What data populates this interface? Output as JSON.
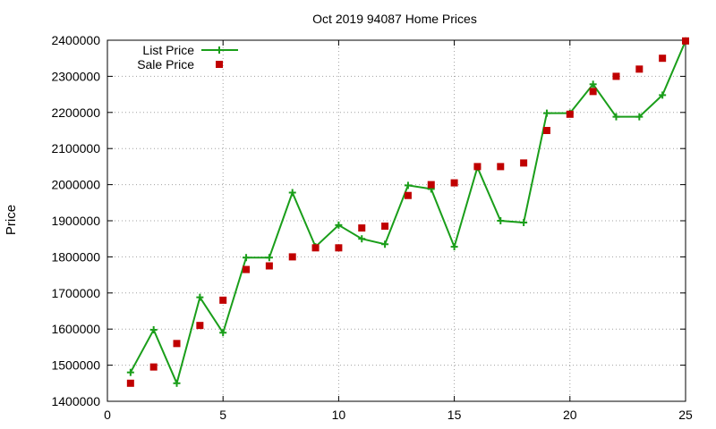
{
  "chart_data": {
    "type": "line",
    "title": "Oct 2019 94087 Home Prices",
    "xlabel": "",
    "ylabel": "Price",
    "xlim": [
      0,
      25
    ],
    "ylim": [
      1400000,
      2400000
    ],
    "xticks": [
      "0",
      "5",
      "10",
      "15",
      "20",
      "25"
    ],
    "yticks": [
      "1400000",
      "1500000",
      "1600000",
      "1700000",
      "1800000",
      "1900000",
      "2000000",
      "2100000",
      "2200000",
      "2300000",
      "2400000"
    ],
    "grid": true,
    "legend_position": "top-left",
    "series": [
      {
        "name": "List Price",
        "style": "line-with-plus-markers",
        "color": "#1a9e1a",
        "x": [
          1,
          2,
          3,
          4,
          5,
          6,
          7,
          8,
          9,
          10,
          11,
          12,
          13,
          14,
          15,
          16,
          17,
          18,
          19,
          20,
          21,
          22,
          23,
          24,
          25
        ],
        "values": [
          1480000,
          1598000,
          1450000,
          1688000,
          1590000,
          1798000,
          1798000,
          1978000,
          1828000,
          1888000,
          1850000,
          1835000,
          1998000,
          1988000,
          1828000,
          2048000,
          1900000,
          1895000,
          2198000,
          2198000,
          2278000,
          2188000,
          2188000,
          2248000,
          2398000
        ]
      },
      {
        "name": "Sale Price",
        "style": "square-markers",
        "color": "#c00000",
        "x": [
          1,
          2,
          3,
          4,
          5,
          6,
          7,
          8,
          9,
          10,
          11,
          12,
          13,
          14,
          15,
          16,
          17,
          18,
          19,
          20,
          21,
          22,
          23,
          24,
          25
        ],
        "values": [
          1450000,
          1495000,
          1560000,
          1610000,
          1680000,
          1765000,
          1775000,
          1800000,
          1825000,
          1825000,
          1880000,
          1885000,
          1970000,
          2000000,
          2005000,
          2050000,
          2050000,
          2060000,
          2150000,
          2195000,
          2258000,
          2300000,
          2320000,
          2350000,
          2398000
        ]
      }
    ]
  }
}
